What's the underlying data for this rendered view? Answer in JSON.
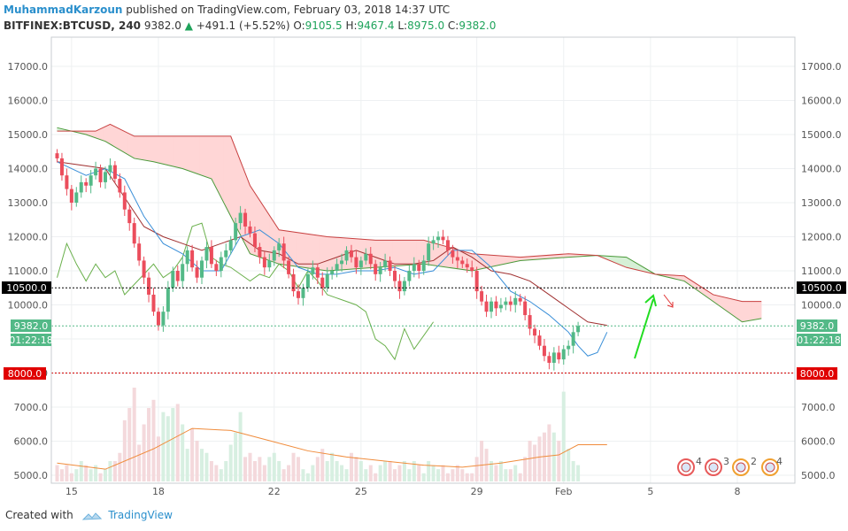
{
  "header": {
    "author": "MuhammadKarzoun",
    "published_text": "published on TradingView.com, February 03, 2018 14:37 UTC",
    "symbol": "BITFINEX:BTCUSD, 240",
    "last": "9382.0",
    "change": "+491.1 (+5.52%)",
    "o_label": "O:",
    "o_value": "9105.5",
    "h_label": "H:",
    "h_value": "9467.4",
    "l_label": "L:",
    "l_value": "8975.0",
    "c_label": "C:",
    "c_value": "9382.0"
  },
  "footer": {
    "created_with": "Created with",
    "brand": "TradingView"
  },
  "tags": {
    "hline_black": "10500.0",
    "price": "9382.0",
    "countdown": "01:22:18",
    "hline_red": "8000.0"
  },
  "events": [
    "4",
    "3",
    "2",
    "4"
  ],
  "colors": {
    "up": "#53b987",
    "down": "#eb4d5c",
    "cloud_bear": "#ffd6d6",
    "cloud_bull": "#d6f0d6",
    "accent": "#2a8fcc"
  },
  "chart_data": {
    "type": "candlestick",
    "interval": "240",
    "x_ticks": [
      {
        "label": "15",
        "t": 3
      },
      {
        "label": "18",
        "t": 21
      },
      {
        "label": "22",
        "t": 45
      },
      {
        "label": "25",
        "t": 63
      },
      {
        "label": "29",
        "t": 87
      },
      {
        "label": "Feb",
        "t": 105
      },
      {
        "label": "5",
        "t": 123
      },
      {
        "label": "8",
        "t": 141
      }
    ],
    "y_ticks": [
      5000,
      6000,
      7000,
      8000,
      9000,
      10000,
      11000,
      12000,
      13000,
      14000,
      15000,
      16000,
      17000
    ],
    "ylim": [
      4900,
      17600
    ],
    "volume_range": [
      5000,
      7300
    ],
    "horizontal_lines": [
      10500,
      8000
    ],
    "current_price": 9382,
    "closes": [
      14300,
      13800,
      13400,
      13000,
      13300,
      13600,
      13500,
      13800,
      14000,
      13600,
      13900,
      14100,
      13700,
      13300,
      12800,
      12400,
      11800,
      11300,
      10800,
      10300,
      9800,
      9400,
      9800,
      10500,
      11000,
      10700,
      11200,
      11600,
      11100,
      10800,
      11300,
      11700,
      11200,
      11000,
      11400,
      11600,
      11900,
      12400,
      12700,
      12300,
      12100,
      11700,
      11400,
      11100,
      11300,
      11600,
      11800,
      11300,
      10900,
      10400,
      10200,
      10500,
      10900,
      11100,
      10800,
      10500,
      10900,
      11000,
      11200,
      11300,
      11600,
      11400,
      11100,
      11300,
      11500,
      11200,
      10900,
      11100,
      11300,
      11000,
      10700,
      10400,
      10700,
      11000,
      11200,
      11000,
      11300,
      11800,
      11900,
      12000,
      11900,
      11600,
      11400,
      11300,
      11200,
      11100,
      11000,
      10400,
      10100,
      9800,
      10100,
      9900,
      10000,
      10100,
      10000,
      10200,
      10100,
      9700,
      9300,
      9100,
      8800,
      8500,
      8300,
      8600,
      8400,
      8700,
      8800,
      9200,
      9382
    ],
    "volumes": [
      5400,
      5300,
      5400,
      5200,
      5300,
      5500,
      5400,
      5300,
      5400,
      5200,
      5300,
      5500,
      5500,
      5700,
      6500,
      6800,
      7300,
      5900,
      6400,
      6800,
      7000,
      6100,
      6700,
      6600,
      6800,
      6900,
      6400,
      5800,
      6300,
      6000,
      5800,
      5700,
      5500,
      5400,
      5300,
      5500,
      5900,
      6200,
      6700,
      5600,
      5700,
      5500,
      5600,
      5400,
      5600,
      5700,
      5500,
      5300,
      5400,
      5700,
      5600,
      5300,
      5200,
      5400,
      5600,
      5800,
      5500,
      5700,
      5500,
      5400,
      5300,
      5700,
      5600,
      5500,
      5300,
      5400,
      5200,
      5400,
      5500,
      5500,
      5300,
      5400,
      5500,
      5300,
      5500,
      5400,
      5200,
      5500,
      5400,
      5300,
      5400,
      5200,
      5300,
      5400,
      5300,
      5200,
      5200,
      5600,
      6000,
      5800,
      5500,
      5400,
      5500,
      5300,
      5300,
      5400,
      5200,
      5600,
      6000,
      5900,
      6100,
      6200,
      6400,
      6200,
      6000,
      7200,
      5800,
      5500,
      5400
    ],
    "ichimoku": {
      "span_a": [
        [
          0,
          15200
        ],
        [
          6,
          15000
        ],
        [
          10,
          14800
        ],
        [
          16,
          14300
        ],
        [
          20,
          14200
        ],
        [
          26,
          14000
        ],
        [
          32,
          13700
        ],
        [
          40,
          11500
        ],
        [
          46,
          11200
        ],
        [
          56,
          11000
        ],
        [
          66,
          11100
        ],
        [
          76,
          11200
        ],
        [
          86,
          11000
        ],
        [
          96,
          11300
        ],
        [
          106,
          11400
        ],
        [
          112,
          11450
        ],
        [
          118,
          11400
        ],
        [
          124,
          10900
        ],
        [
          130,
          10700
        ],
        [
          136,
          10100
        ],
        [
          142,
          9500
        ],
        [
          146,
          9600
        ]
      ],
      "span_b": [
        [
          0,
          15100
        ],
        [
          8,
          15100
        ],
        [
          11,
          15300
        ],
        [
          16,
          14950
        ],
        [
          24,
          14950
        ],
        [
          36,
          14950
        ],
        [
          40,
          13500
        ],
        [
          46,
          12200
        ],
        [
          56,
          12000
        ],
        [
          66,
          11900
        ],
        [
          76,
          11900
        ],
        [
          86,
          11500
        ],
        [
          96,
          11400
        ],
        [
          106,
          11500
        ],
        [
          112,
          11450
        ],
        [
          118,
          11100
        ],
        [
          124,
          10900
        ],
        [
          130,
          10850
        ],
        [
          136,
          10300
        ],
        [
          142,
          10100
        ],
        [
          146,
          10100
        ]
      ],
      "conversion": [
        [
          0,
          14200
        ],
        [
          6,
          13800
        ],
        [
          10,
          14000
        ],
        [
          14,
          13700
        ],
        [
          18,
          12600
        ],
        [
          22,
          11800
        ],
        [
          26,
          11500
        ],
        [
          30,
          11000
        ],
        [
          34,
          11000
        ],
        [
          38,
          12000
        ],
        [
          42,
          12200
        ],
        [
          46,
          11800
        ],
        [
          50,
          11100
        ],
        [
          54,
          10900
        ],
        [
          58,
          10900
        ],
        [
          62,
          11000
        ],
        [
          66,
          11000
        ],
        [
          70,
          11100
        ],
        [
          74,
          10900
        ],
        [
          78,
          11000
        ],
        [
          82,
          11600
        ],
        [
          86,
          11600
        ],
        [
          90,
          11100
        ],
        [
          94,
          10400
        ],
        [
          98,
          10100
        ],
        [
          102,
          9700
        ],
        [
          106,
          9200
        ],
        [
          108,
          8800
        ],
        [
          110,
          8500
        ],
        [
          112,
          8600
        ],
        [
          114,
          9200
        ]
      ],
      "base": [
        [
          0,
          14200
        ],
        [
          10,
          14000
        ],
        [
          18,
          12300
        ],
        [
          22,
          12000
        ],
        [
          26,
          11800
        ],
        [
          30,
          11600
        ],
        [
          34,
          11800
        ],
        [
          38,
          12000
        ],
        [
          42,
          11600
        ],
        [
          46,
          11500
        ],
        [
          50,
          11200
        ],
        [
          54,
          11200
        ],
        [
          58,
          11400
        ],
        [
          62,
          11600
        ],
        [
          66,
          11400
        ],
        [
          70,
          11200
        ],
        [
          74,
          11200
        ],
        [
          78,
          11300
        ],
        [
          82,
          11700
        ],
        [
          86,
          11400
        ],
        [
          90,
          11000
        ],
        [
          94,
          10900
        ],
        [
          98,
          10700
        ],
        [
          102,
          10300
        ],
        [
          106,
          9900
        ],
        [
          110,
          9500
        ],
        [
          114,
          9400
        ]
      ],
      "lagging": [
        [
          0,
          10800
        ],
        [
          2,
          11800
        ],
        [
          4,
          11200
        ],
        [
          6,
          10700
        ],
        [
          8,
          11200
        ],
        [
          10,
          10800
        ],
        [
          12,
          11000
        ],
        [
          14,
          10300
        ],
        [
          16,
          10600
        ],
        [
          18,
          10900
        ],
        [
          20,
          11200
        ],
        [
          22,
          10800
        ],
        [
          24,
          11000
        ],
        [
          26,
          11400
        ],
        [
          28,
          12300
        ],
        [
          30,
          12400
        ],
        [
          32,
          11400
        ],
        [
          34,
          11200
        ],
        [
          36,
          11100
        ],
        [
          38,
          10900
        ],
        [
          40,
          10700
        ],
        [
          42,
          10900
        ],
        [
          44,
          10800
        ],
        [
          46,
          11200
        ],
        [
          48,
          11000
        ],
        [
          50,
          10500
        ],
        [
          52,
          11000
        ],
        [
          54,
          10700
        ],
        [
          56,
          10300
        ],
        [
          58,
          10200
        ],
        [
          60,
          10100
        ],
        [
          62,
          10000
        ],
        [
          64,
          9800
        ],
        [
          66,
          9000
        ],
        [
          68,
          8800
        ],
        [
          70,
          8400
        ],
        [
          72,
          9300
        ],
        [
          74,
          8700
        ],
        [
          76,
          9100
        ],
        [
          78,
          9500
        ]
      ]
    },
    "volume_ma": [
      [
        0,
        5450
      ],
      [
        10,
        5300
      ],
      [
        20,
        5800
      ],
      [
        28,
        6300
      ],
      [
        36,
        6250
      ],
      [
        44,
        6000
      ],
      [
        52,
        5750
      ],
      [
        60,
        5600
      ],
      [
        68,
        5500
      ],
      [
        76,
        5400
      ],
      [
        84,
        5350
      ],
      [
        92,
        5450
      ],
      [
        100,
        5600
      ],
      [
        104,
        5650
      ],
      [
        108,
        5900
      ],
      [
        114,
        5900
      ]
    ]
  }
}
